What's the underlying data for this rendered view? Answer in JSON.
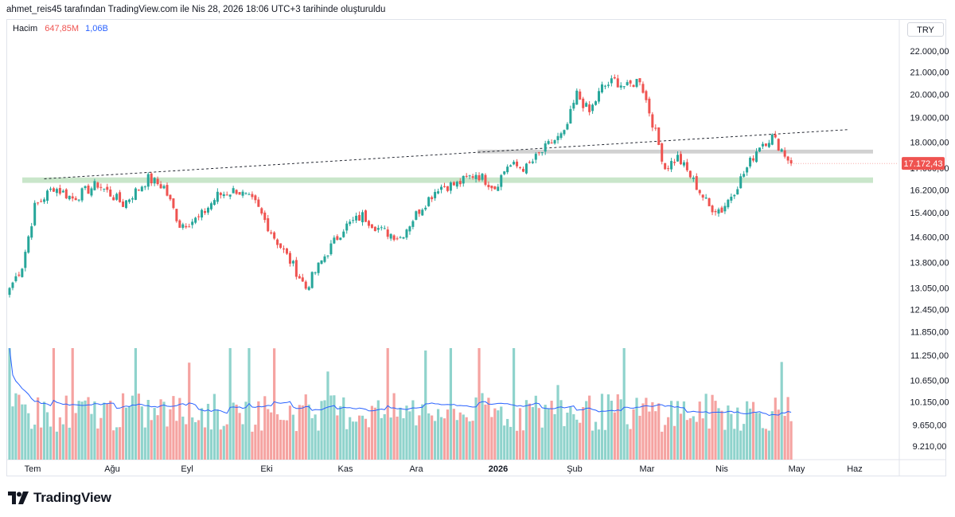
{
  "header": {
    "text": "ahmet_reis45 tarafından TradingView.com ile Nis 28, 2026 18:06 UTC+3 tarihinde oluşturuldu"
  },
  "legend": {
    "label": "Hacim",
    "value1": "647,85M",
    "value2": "1,06B",
    "value1_color": "#ef5350",
    "value2_color": "#2962ff"
  },
  "currency": "TRY",
  "brand": {
    "name": "TradingView"
  },
  "colors": {
    "up": "#26a69a",
    "down": "#ef5350",
    "up_vol": "#8fd3cc",
    "down_vol": "#f5a3a1",
    "ma": "#2962ff",
    "support_zone": "#a5d6a7",
    "resistance_zone": "#bdbdbd",
    "price_tag": "#ef5350"
  },
  "chart_data": {
    "type": "candlestick",
    "x_ticks": [
      "Tem",
      "Ağu",
      "Eyl",
      "Eki",
      "Kas",
      "Ara",
      "2026",
      "Şub",
      "Mar",
      "Nis",
      "May",
      "Haz"
    ],
    "y_ticks": [
      "22.000,00",
      "21.000,00",
      "20.000,00",
      "19.000,00",
      "18.000,00",
      "17.000,00",
      "16.200,00",
      "15.400,00",
      "14.600,00",
      "13.800,00",
      "13.050,00",
      "12.450,00",
      "11.850,00",
      "11.250,00",
      "10.650,00",
      "10.150,00",
      "9.650,00",
      "9.210,00"
    ],
    "last_price": "17.172,43",
    "y_scale": "log",
    "series": [
      {
        "name": "Hacim",
        "kind": "volume"
      }
    ],
    "anchors": [
      {
        "t": 0,
        "p": 13050
      },
      {
        "t": 4,
        "p": 13700
      },
      {
        "t": 8,
        "p": 15600
      },
      {
        "t": 14,
        "p": 16300
      },
      {
        "t": 20,
        "p": 15900
      },
      {
        "t": 28,
        "p": 16400
      },
      {
        "t": 36,
        "p": 15700
      },
      {
        "t": 44,
        "p": 16600
      },
      {
        "t": 49,
        "p": 16300
      },
      {
        "t": 54,
        "p": 15000
      },
      {
        "t": 60,
        "p": 15200
      },
      {
        "t": 66,
        "p": 16000
      },
      {
        "t": 72,
        "p": 16200
      },
      {
        "t": 78,
        "p": 15700
      },
      {
        "t": 84,
        "p": 14600
      },
      {
        "t": 90,
        "p": 13700
      },
      {
        "t": 94,
        "p": 13050
      },
      {
        "t": 100,
        "p": 14000
      },
      {
        "t": 106,
        "p": 14900
      },
      {
        "t": 112,
        "p": 15300
      },
      {
        "t": 118,
        "p": 14800
      },
      {
        "t": 124,
        "p": 14600
      },
      {
        "t": 130,
        "p": 15500
      },
      {
        "t": 136,
        "p": 16300
      },
      {
        "t": 142,
        "p": 16400
      },
      {
        "t": 148,
        "p": 16800
      },
      {
        "t": 154,
        "p": 16300
      },
      {
        "t": 158,
        "p": 17100
      },
      {
        "t": 164,
        "p": 17000
      },
      {
        "t": 172,
        "p": 18000
      },
      {
        "t": 176,
        "p": 18300
      },
      {
        "t": 180,
        "p": 20000
      },
      {
        "t": 184,
        "p": 19200
      },
      {
        "t": 188,
        "p": 20300
      },
      {
        "t": 192,
        "p": 20600
      },
      {
        "t": 196,
        "p": 20300
      },
      {
        "t": 200,
        "p": 20700
      },
      {
        "t": 204,
        "p": 18800
      },
      {
        "t": 208,
        "p": 17000
      },
      {
        "t": 212,
        "p": 17400
      },
      {
        "t": 216,
        "p": 16700
      },
      {
        "t": 222,
        "p": 15600
      },
      {
        "t": 226,
        "p": 15500
      },
      {
        "t": 230,
        "p": 16200
      },
      {
        "t": 234,
        "p": 17000
      },
      {
        "t": 238,
        "p": 17900
      },
      {
        "t": 242,
        "p": 18200
      },
      {
        "t": 245,
        "p": 17700
      },
      {
        "t": 248,
        "p": 17172.43
      }
    ],
    "support_zone": [
      16450,
      16650
    ],
    "resistance_zone": [
      17550,
      17700
    ],
    "trendline": [
      {
        "t": 11,
        "p": 16600
      },
      {
        "t": 268,
        "p": 18500
      }
    ]
  }
}
